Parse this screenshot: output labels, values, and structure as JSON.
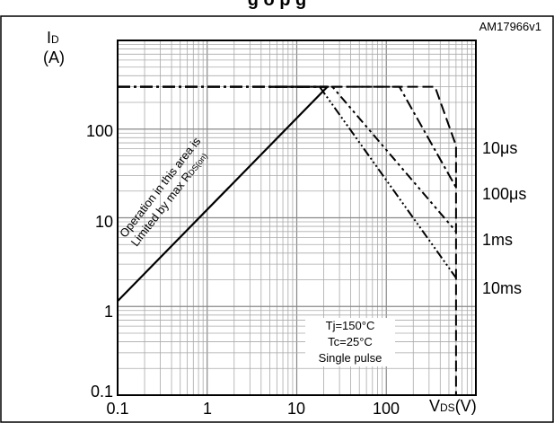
{
  "header": {
    "title_partial": "g      o      p      g",
    "reference": "AM17966v1"
  },
  "chart_data": {
    "type": "line",
    "xscale": "log",
    "yscale": "log",
    "xlim": [
      0.1,
      1000
    ],
    "ylim": [
      0.1,
      1000
    ],
    "grid": true,
    "ylabel": {
      "main": "I",
      "sub": "D",
      "unit": "(A)"
    },
    "xlabel": {
      "main": "V",
      "sub": "DS",
      "unit": "(V)"
    },
    "xticks": [
      "0.1",
      "1",
      "10",
      "100"
    ],
    "yticks": [
      "0.1",
      "1",
      "10",
      "100"
    ],
    "rds_limit": {
      "points": [
        [
          0.1,
          1.15
        ],
        [
          22,
          300
        ]
      ],
      "label_line1": "Operation in this area is",
      "label_line2_main": "Limited by max R",
      "label_line2_sub": "DS(on)"
    },
    "series": [
      {
        "name": "10μs",
        "points": [
          [
            5,
            300
          ],
          [
            350,
            300
          ],
          [
            600,
            65
          ],
          [
            600,
            0.1
          ]
        ]
      },
      {
        "name": "100μs",
        "points": [
          [
            5,
            300
          ],
          [
            140,
            300
          ],
          [
            600,
            22
          ]
        ]
      },
      {
        "name": "1ms",
        "points": [
          [
            5,
            300
          ],
          [
            25,
            300
          ],
          [
            600,
            7
          ]
        ]
      },
      {
        "name": "10ms",
        "points": [
          [
            5,
            300
          ],
          [
            18,
            300
          ],
          [
            600,
            2.1
          ]
        ]
      }
    ],
    "current_limit": {
      "points": [
        [
          0.1,
          300
        ],
        [
          22,
          300
        ]
      ]
    },
    "conditions": [
      "Tj=150°C",
      "Tc=25°C",
      "Single pulse"
    ]
  }
}
